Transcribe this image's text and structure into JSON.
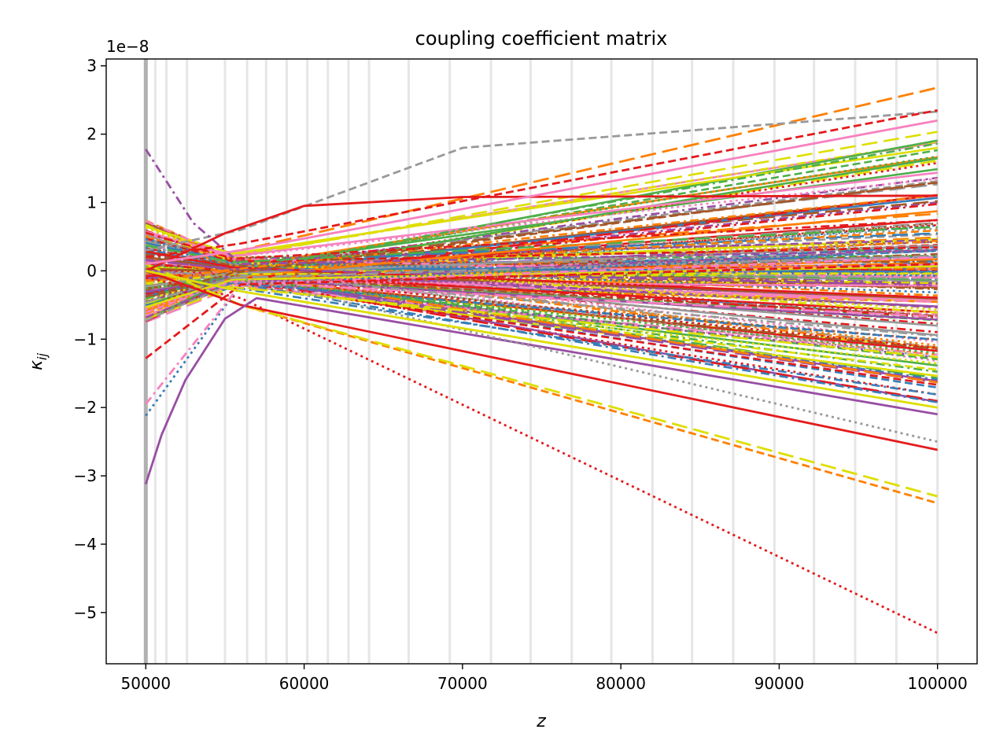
{
  "chart_data": {
    "type": "line",
    "title": "coupling coefficient matrix",
    "xlabel": "z",
    "ylabel": "κ_ij",
    "ylabel_base": "κ",
    "ylabel_sub": "ij",
    "y_offset_label": "1e−8",
    "y_scale": 1e-08,
    "xlim": [
      47500,
      102500
    ],
    "ylim": [
      -5.75,
      3.1
    ],
    "x_ticks": [
      50000,
      60000,
      70000,
      80000,
      90000,
      100000
    ],
    "x_tick_labels": [
      "50000",
      "60000",
      "70000",
      "80000",
      "90000",
      "100000"
    ],
    "y_ticks": [
      3,
      2,
      1,
      0,
      -1,
      -2,
      -3,
      -4,
      -5
    ],
    "y_tick_labels": [
      "3",
      "2",
      "1",
      "0",
      "−1",
      "−2",
      "−3",
      "−4",
      "−5"
    ],
    "grid": false,
    "legend": "none",
    "vertical_markers_z": [
      50000,
      50600,
      51300,
      52600,
      55000,
      56400,
      57600,
      58900,
      60200,
      61500,
      62800,
      64100,
      66600,
      69200,
      71800,
      74300,
      76900,
      79400,
      82000,
      84500,
      87100,
      89700,
      92200,
      94800,
      97400,
      100000
    ],
    "palette": [
      "#e41a1c",
      "#377eb8",
      "#4daf4a",
      "#984ea3",
      "#ff7f00",
      "#dede00",
      "#a65628",
      "#f781bf",
      "#999999"
    ],
    "notable_series": [
      {
        "color": "#e41a1c",
        "dash": "dotted",
        "x": [
          50000,
          56000,
          100000
        ],
        "y": [
          -0.1,
          -0.4,
          -5.3
        ]
      },
      {
        "color": "#ff7f00",
        "dash": "dashed",
        "x": [
          50000,
          56000,
          100000
        ],
        "y": [
          0.0,
          -0.5,
          -3.4
        ]
      },
      {
        "color": "#dede00",
        "dash": "longdash",
        "x": [
          50000,
          56000,
          100000
        ],
        "y": [
          0.1,
          -0.5,
          -3.3
        ]
      },
      {
        "color": "#e41a1c",
        "dash": "solid",
        "x": [
          50000,
          56000,
          100000
        ],
        "y": [
          0.0,
          -0.5,
          -2.62
        ]
      },
      {
        "color": "#984ea3",
        "dash": "solid",
        "x": [
          50000,
          51000,
          52500,
          55000,
          57000,
          100000
        ],
        "y": [
          -3.12,
          -2.4,
          -1.6,
          -0.7,
          -0.4,
          -2.1
        ]
      },
      {
        "color": "#ff7f00",
        "dash": "longdash",
        "x": [
          50000,
          56000,
          100000
        ],
        "y": [
          0.1,
          0.3,
          2.68
        ]
      },
      {
        "color": "#999999",
        "dash": "dashed",
        "x": [
          50000,
          56000,
          70000,
          100000
        ],
        "y": [
          0.3,
          0.6,
          1.8,
          2.33
        ]
      },
      {
        "color": "#984ea3",
        "dash": "dashdot",
        "x": [
          50000,
          53000,
          56000,
          100000
        ],
        "y": [
          1.78,
          0.7,
          0.1,
          0.3
        ]
      },
      {
        "color": "#e41a1c",
        "dash": "solid",
        "x": [
          50000,
          55000,
          60000,
          70000,
          100000
        ],
        "y": [
          0.0,
          0.55,
          0.95,
          1.08,
          1.1
        ]
      },
      {
        "color": "#377eb8",
        "dash": "dotted",
        "x": [
          50000,
          56000,
          100000
        ],
        "y": [
          -2.12,
          -0.2,
          0.3
        ]
      },
      {
        "color": "#f781bf",
        "dash": "dashdot",
        "x": [
          50000,
          56000,
          100000
        ],
        "y": [
          -1.95,
          -0.2,
          0.2
        ]
      },
      {
        "color": "#e41a1c",
        "dash": "dashed",
        "x": [
          50000,
          56000,
          100000
        ],
        "y": [
          -1.28,
          -0.2,
          0.1
        ]
      },
      {
        "color": "#999999",
        "dash": "dotted",
        "x": [
          50000,
          56000,
          100000
        ],
        "y": [
          0.0,
          -0.1,
          -2.5
        ]
      },
      {
        "color": "#e41a1c",
        "dash": "dashed",
        "x": [
          50000,
          56000,
          100000
        ],
        "y": [
          0.2,
          0.4,
          2.35
        ]
      },
      {
        "color": "#f781bf",
        "dash": "solid",
        "x": [
          50000,
          56000,
          100000
        ],
        "y": [
          0.1,
          0.3,
          2.2
        ]
      },
      {
        "color": "#dede00",
        "dash": "solid",
        "x": [
          50000,
          56000,
          100000
        ],
        "y": [
          0.0,
          -0.3,
          -2.0
        ]
      }
    ]
  }
}
